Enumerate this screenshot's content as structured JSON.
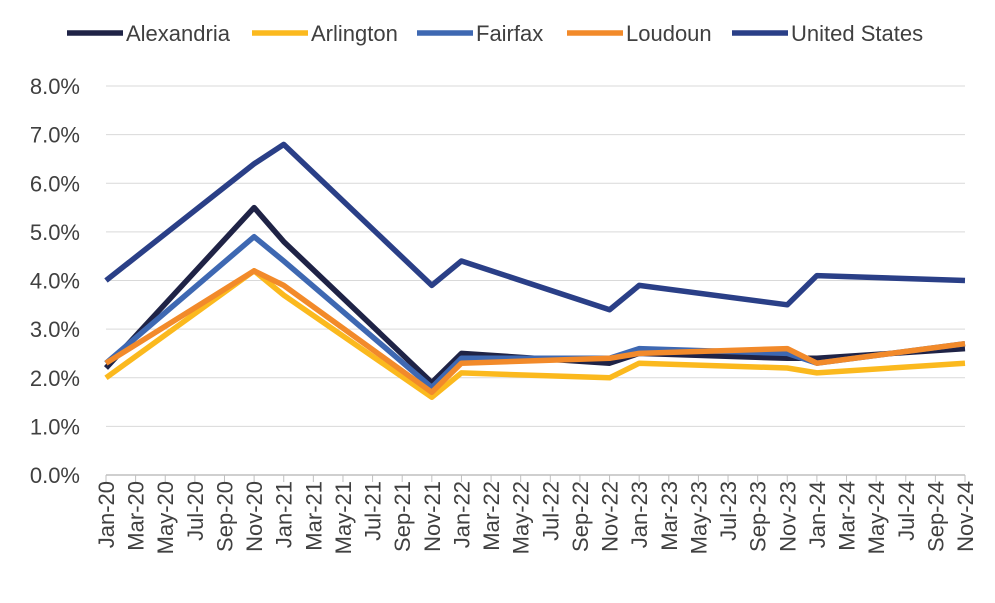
{
  "chart_data": {
    "type": "line",
    "title": "",
    "xlabel": "",
    "ylabel": "",
    "ylim": [
      0,
      8
    ],
    "y_tick_format": "percent_1dp",
    "yticks": [
      "0.0%",
      "1.0%",
      "2.0%",
      "3.0%",
      "4.0%",
      "5.0%",
      "6.0%",
      "7.0%",
      "8.0%"
    ],
    "legend_position": "top",
    "grid": "horizontal",
    "x_tick_labels": [
      "Jan-20",
      "Mar-20",
      "May-20",
      "Jul-20",
      "Sep-20",
      "Nov-20",
      "Jan-21",
      "Mar-21",
      "May-21",
      "Jul-21",
      "Sep-21",
      "Nov-21",
      "Jan-22",
      "Mar-22",
      "May-22",
      "Jul-22",
      "Sep-22",
      "Nov-22",
      "Jan-23",
      "Mar-23",
      "May-23",
      "Jul-23",
      "Sep-23",
      "Nov-23",
      "Jan-24",
      "Mar-24",
      "May-24",
      "Jul-24",
      "Sep-24",
      "Nov-24"
    ],
    "series": [
      {
        "name": "Alexandria",
        "color": "#1f2346",
        "points": [
          {
            "x": "Jan-20",
            "y": 2.2
          },
          {
            "x": "Nov-20",
            "y": 5.5
          },
          {
            "x": "Jan-21",
            "y": 4.8
          },
          {
            "x": "Nov-21",
            "y": 1.9
          },
          {
            "x": "Jan-22",
            "y": 2.5
          },
          {
            "x": "Nov-22",
            "y": 2.3
          },
          {
            "x": "Jan-23",
            "y": 2.5
          },
          {
            "x": "Nov-23",
            "y": 2.4
          },
          {
            "x": "Jan-24",
            "y": 2.4
          },
          {
            "x": "Nov-24",
            "y": 2.6
          }
        ]
      },
      {
        "name": "Arlington",
        "color": "#fbb91e",
        "points": [
          {
            "x": "Jan-20",
            "y": 2.0
          },
          {
            "x": "Nov-20",
            "y": 4.2
          },
          {
            "x": "Jan-21",
            "y": 3.7
          },
          {
            "x": "Nov-21",
            "y": 1.6
          },
          {
            "x": "Jan-22",
            "y": 2.1
          },
          {
            "x": "Nov-22",
            "y": 2.0
          },
          {
            "x": "Jan-23",
            "y": 2.3
          },
          {
            "x": "Nov-23",
            "y": 2.2
          },
          {
            "x": "Jan-24",
            "y": 2.1
          },
          {
            "x": "Nov-24",
            "y": 2.3
          }
        ]
      },
      {
        "name": "Fairfax",
        "color": "#3e68b2",
        "points": [
          {
            "x": "Jan-20",
            "y": 2.3
          },
          {
            "x": "Nov-20",
            "y": 4.9
          },
          {
            "x": "Jan-21",
            "y": 4.4
          },
          {
            "x": "Nov-21",
            "y": 1.8
          },
          {
            "x": "Jan-22",
            "y": 2.4
          },
          {
            "x": "Nov-22",
            "y": 2.4
          },
          {
            "x": "Jan-23",
            "y": 2.6
          },
          {
            "x": "Nov-23",
            "y": 2.5
          },
          {
            "x": "Jan-24",
            "y": 2.3
          },
          {
            "x": "Nov-24",
            "y": 2.7
          }
        ]
      },
      {
        "name": "Loudoun",
        "color": "#f28a2a",
        "points": [
          {
            "x": "Jan-20",
            "y": 2.3
          },
          {
            "x": "Nov-20",
            "y": 4.2
          },
          {
            "x": "Jan-21",
            "y": 3.9
          },
          {
            "x": "Nov-21",
            "y": 1.7
          },
          {
            "x": "Jan-22",
            "y": 2.3
          },
          {
            "x": "Nov-22",
            "y": 2.4
          },
          {
            "x": "Jan-23",
            "y": 2.5
          },
          {
            "x": "Nov-23",
            "y": 2.6
          },
          {
            "x": "Jan-24",
            "y": 2.3
          },
          {
            "x": "Nov-24",
            "y": 2.7
          }
        ]
      },
      {
        "name": "United States",
        "color": "#2a3f87",
        "points": [
          {
            "x": "Jan-20",
            "y": 4.0
          },
          {
            "x": "Nov-20",
            "y": 6.4
          },
          {
            "x": "Jan-21",
            "y": 6.8
          },
          {
            "x": "Nov-21",
            "y": 3.9
          },
          {
            "x": "Jan-22",
            "y": 4.4
          },
          {
            "x": "Nov-22",
            "y": 3.4
          },
          {
            "x": "Jan-23",
            "y": 3.9
          },
          {
            "x": "Nov-23",
            "y": 3.5
          },
          {
            "x": "Jan-24",
            "y": 4.1
          },
          {
            "x": "Nov-24",
            "y": 4.0
          }
        ]
      }
    ]
  },
  "colors": {
    "gridline": "#d9d9d9",
    "axis": "#bfbfbf",
    "text": "#404040"
  }
}
